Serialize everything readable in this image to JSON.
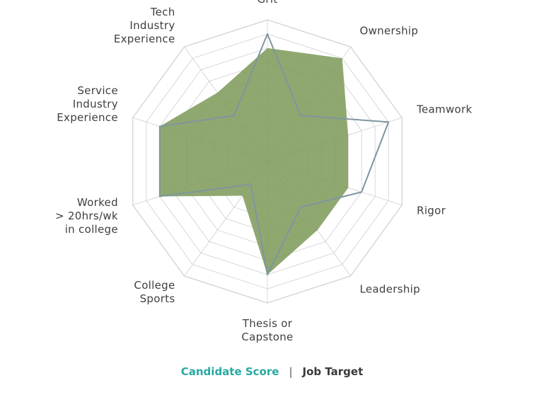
{
  "chart_data": {
    "type": "radar",
    "categories": [
      "Grit",
      "Ownership",
      "Teamwork",
      "Rigor",
      "Leadership",
      "Thesis or Capstone",
      "College Sports",
      "Worked > 20hrs/wk in college",
      "Service Industry Experience",
      "Tech Industry Experience"
    ],
    "category_lines": [
      [
        "Grit"
      ],
      [
        "Ownership"
      ],
      [
        "Teamwork"
      ],
      [
        "Rigor"
      ],
      [
        "Leadership"
      ],
      [
        "Thesis or",
        "Capstone"
      ],
      [
        "College",
        "Sports"
      ],
      [
        "Worked",
        "> 20hrs/wk",
        "in college"
      ],
      [
        "Service",
        "Industry",
        "Experience"
      ],
      [
        "Tech",
        "Industry",
        "Experience"
      ]
    ],
    "rlim": [
      0,
      10
    ],
    "grid_rings": 10,
    "series": [
      {
        "name": "Candidate Score",
        "values": [
          8,
          9,
          6,
          6,
          6,
          8,
          3,
          8,
          8,
          6
        ],
        "color": "#7f9c5c",
        "fill_opacity": 0.88
      },
      {
        "name": "Job Target",
        "values": [
          9,
          4,
          9,
          7,
          4,
          8,
          2,
          8,
          8,
          4
        ],
        "color": "#7f95a0"
      }
    ]
  },
  "legend": {
    "candidate_label": "Candidate Score",
    "separator": "|",
    "target_label": "Job Target"
  },
  "colors": {
    "grid": "#cfcfcf",
    "candidate_legend": "#26a9a3",
    "target_legend": "#3a3a3a"
  }
}
